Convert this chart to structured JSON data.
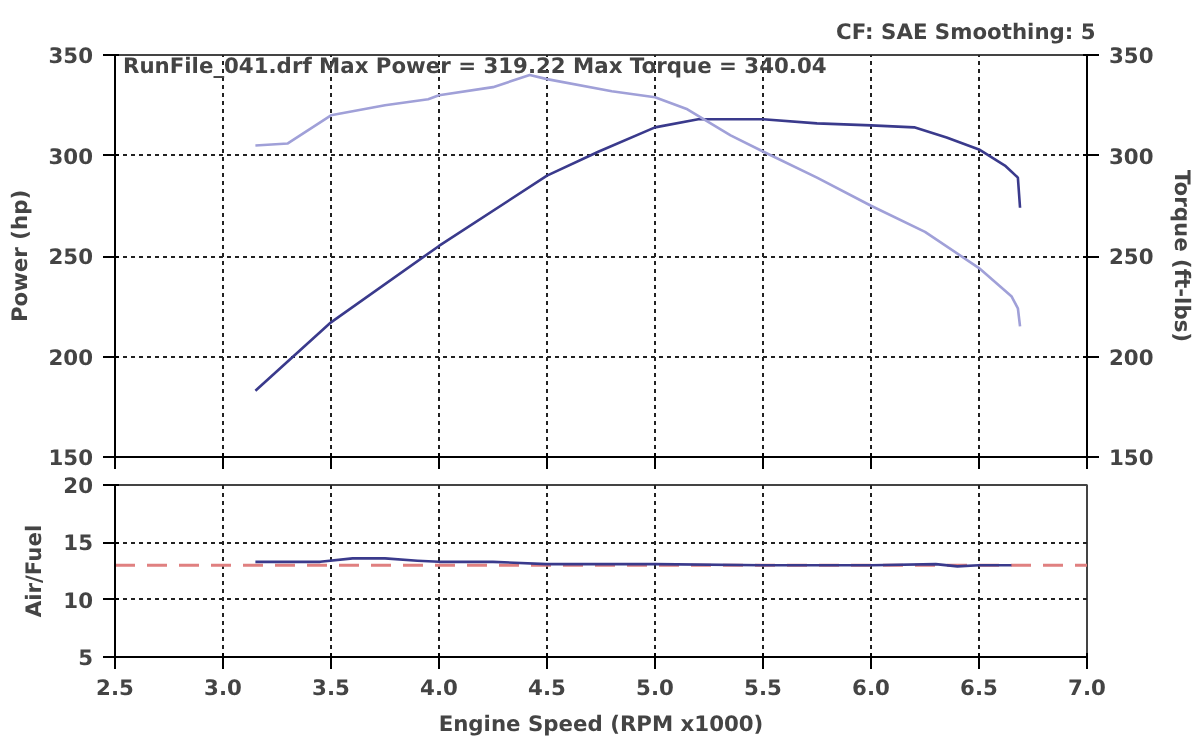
{
  "chart_data": [
    {
      "type": "line",
      "x": [
        3.15,
        3.5,
        4.0,
        4.5,
        4.74,
        5.0,
        5.2,
        5.5,
        5.75,
        6.0,
        6.2,
        6.35,
        6.5,
        6.62,
        6.68,
        6.69
      ],
      "series": [
        {
          "color": "#3a3a8c",
          "values": [
            183,
            217,
            255,
            290,
            302,
            314,
            318,
            318,
            316,
            315,
            314,
            309,
            303,
            295,
            289,
            274
          ]
        },
        {
          "color": "#a0a0d8",
          "x": [
            3.15,
            3.3,
            3.5,
            3.75,
            3.95,
            4.0,
            4.25,
            4.42,
            4.5,
            4.8,
            5.0,
            5.15,
            5.35,
            5.5,
            5.75,
            6.0,
            6.25,
            6.5,
            6.65,
            6.68,
            6.69
          ],
          "values": [
            305,
            306,
            320,
            325,
            328,
            330,
            334,
            340,
            338,
            332,
            329,
            323,
            310,
            302,
            289,
            275,
            262,
            244,
            230,
            224,
            215
          ]
        }
      ],
      "xlim": [
        2.5,
        7.0
      ],
      "xticks": [
        2.5,
        3.0,
        3.5,
        4.0,
        4.5,
        5.0,
        5.5,
        6.0,
        6.5,
        7.0
      ],
      "ylim": [
        150,
        350
      ],
      "yticks": [
        150,
        200,
        250,
        300,
        350
      ],
      "y2lim": [
        150,
        350
      ],
      "y2ticks": [
        150,
        200,
        250,
        300,
        350
      ],
      "ylabel": "Power (hp)",
      "y2label": "Torque (ft-lbs)",
      "tick_labels": "y",
      "grid": true,
      "line_style": "solid",
      "annotations": [
        "CF: SAE  Smoothing: 5",
        "RunFile_041.drf Max Power = 319.22    Max Torque = 340.04"
      ]
    },
    {
      "type": "line",
      "x": [
        3.15,
        3.45,
        3.6,
        3.75,
        3.9,
        4.0,
        4.25,
        4.5,
        5.0,
        5.5,
        6.0,
        6.3,
        6.4,
        6.5,
        6.65
      ],
      "series": [
        {
          "color": "#3a3a8c",
          "values": [
            13.3,
            13.3,
            13.6,
            13.6,
            13.4,
            13.3,
            13.3,
            13.1,
            13.1,
            13.0,
            13.0,
            13.1,
            12.9,
            13.0,
            13.0
          ]
        }
      ],
      "xlim": [
        2.5,
        7.0
      ],
      "xticks": [
        2.5,
        {
          "value": 3.0,
          "label": "3.0"
        },
        3.5,
        {
          "value": 4.0,
          "label": "4.0"
        },
        4.5,
        {
          "value": 5.0,
          "label": "5.0"
        },
        5.5,
        {
          "value": 6.0,
          "label": "6.0"
        },
        6.5,
        {
          "value": 7.0,
          "label": "7.0"
        }
      ],
      "ylim": [
        5,
        20
      ],
      "yticks": [
        5,
        10,
        15,
        20
      ],
      "xlabel": "Engine Speed (RPM x1000)",
      "ylabel": "Air/Fuel",
      "grid": true,
      "line_style": "solid",
      "ref_lines": [
        {
          "axis": "y",
          "value": 13.0,
          "color": "#e08080",
          "line_style": "dashed"
        }
      ]
    }
  ]
}
